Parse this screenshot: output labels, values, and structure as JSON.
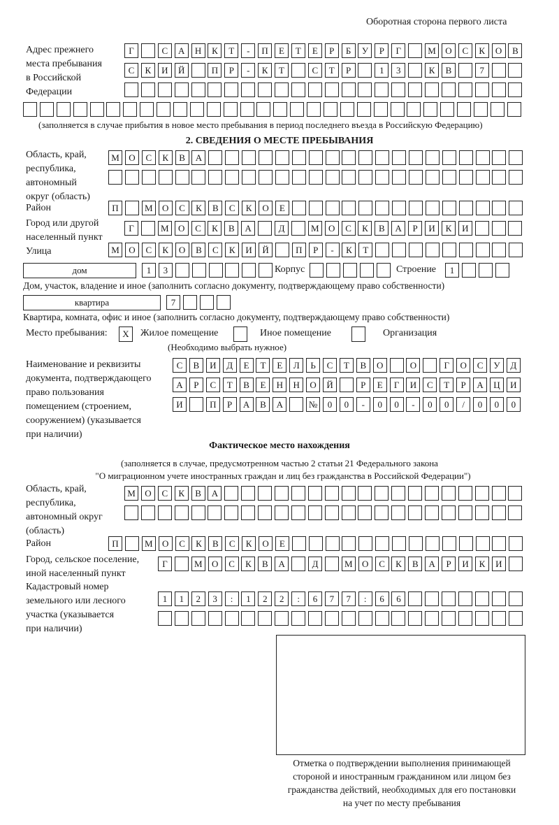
{
  "header": {
    "page_note": "Оборотная сторона первого листа"
  },
  "prev_address": {
    "label": [
      "Адрес прежнего",
      "места пребывания",
      "в Российской",
      "Федерации"
    ],
    "rows": [
      [
        "Г",
        "",
        "С",
        "А",
        "Н",
        "К",
        "Т",
        "-",
        "П",
        "Е",
        "Т",
        "Е",
        "Р",
        "Б",
        "У",
        "Р",
        "Г",
        "",
        "М",
        "О",
        "С",
        "К",
        "О",
        "В"
      ],
      [
        "С",
        "К",
        "И",
        "Й",
        "",
        "П",
        "Р",
        "-",
        "К",
        "Т",
        "",
        "С",
        "Т",
        "Р",
        "",
        "1",
        "3",
        "",
        "К",
        "В",
        "",
        "7",
        "",
        ""
      ],
      [
        "",
        "",
        "",
        "",
        "",
        "",
        "",
        "",
        "",
        "",
        "",
        "",
        "",
        "",
        "",
        "",
        "",
        "",
        "",
        "",
        "",
        "",
        "",
        ""
      ],
      [
        "",
        "",
        "",
        "",
        "",
        "",
        "",
        "",
        "",
        "",
        "",
        "",
        "",
        "",
        "",
        "",
        "",
        "",
        "",
        "",
        "",
        "",
        "",
        "",
        "",
        "",
        "",
        "",
        "",
        ""
      ]
    ],
    "caption": "(заполняется в случае прибытия в новое место пребывания в период последнего въезда в Российскую Федерацию)"
  },
  "section2": {
    "title": "2. СВЕДЕНИЯ О МЕСТЕ ПРЕБЫВАНИЯ",
    "region": {
      "label": [
        "Область, край,",
        "республика,",
        "автономный",
        "округ (область)"
      ],
      "rows": [
        [
          "М",
          "О",
          "С",
          "К",
          "В",
          "А",
          "",
          "",
          "",
          "",
          "",
          "",
          "",
          "",
          "",
          "",
          "",
          "",
          "",
          "",
          "",
          "",
          "",
          "",
          ""
        ],
        [
          "",
          "",
          "",
          "",
          "",
          "",
          "",
          "",
          "",
          "",
          "",
          "",
          "",
          "",
          "",
          "",
          "",
          "",
          "",
          "",
          "",
          "",
          "",
          "",
          ""
        ]
      ]
    },
    "district": {
      "label": "Район",
      "cells": [
        "П",
        "",
        "М",
        "О",
        "С",
        "К",
        "В",
        "С",
        "К",
        "О",
        "Е",
        "",
        "",
        "",
        "",
        "",
        "",
        "",
        "",
        "",
        "",
        "",
        "",
        "",
        ""
      ]
    },
    "city": {
      "label": [
        "Город или другой",
        "населенный пункт"
      ],
      "cells": [
        "Г",
        "",
        "М",
        "О",
        "С",
        "К",
        "В",
        "А",
        "",
        "Д",
        "",
        "М",
        "О",
        "С",
        "К",
        "В",
        "А",
        "Р",
        "И",
        "К",
        "И",
        "",
        "",
        ""
      ]
    },
    "street": {
      "label": "Улица",
      "cells": [
        "М",
        "О",
        "С",
        "К",
        "О",
        "В",
        "С",
        "К",
        "И",
        "Й",
        "",
        "П",
        "Р",
        "-",
        "К",
        "Т",
        "",
        "",
        "",
        "",
        "",
        "",
        "",
        "",
        ""
      ]
    },
    "house": {
      "type": "дом",
      "cells": [
        "1",
        "3",
        "",
        "",
        "",
        "",
        "",
        ""
      ],
      "korpus_label": "Корпус",
      "korpus_cells": [
        "",
        "",
        "",
        "",
        ""
      ],
      "building_label": "Строение",
      "building_cells": [
        "1",
        "",
        "",
        ""
      ],
      "caption": "Дом, участок, владение и иное (заполнить согласно документу, подтверждающему право собственности)"
    },
    "apartment": {
      "type": "квартира",
      "cells": [
        "7",
        "",
        "",
        ""
      ],
      "caption": "Квартира, комната, офис и иное (заполнить согласно документу, подтверждающему право собственности)"
    },
    "stay_place": {
      "label": "Место пребывания:",
      "options": [
        {
          "mark": "X",
          "label": "Жилое помещение"
        },
        {
          "mark": "",
          "label": "Иное помещение"
        },
        {
          "mark": "",
          "label": "Организация"
        }
      ],
      "hint": "(Необходимо выбрать нужное)"
    },
    "document": {
      "label": [
        "Наименование и реквизиты",
        "документа, подтверждающего",
        "право пользования",
        "помещением (строением,",
        "сооружением) (указывается",
        "при наличии)"
      ],
      "rows": [
        [
          "С",
          "В",
          "И",
          "Д",
          "Е",
          "Т",
          "Е",
          "Л",
          "Ь",
          "С",
          "Т",
          "В",
          "О",
          "",
          "О",
          "",
          "Г",
          "О",
          "С",
          "У",
          "Д"
        ],
        [
          "А",
          "Р",
          "С",
          "Т",
          "В",
          "Е",
          "Н",
          "Н",
          "О",
          "Й",
          "",
          "Р",
          "Е",
          "Г",
          "И",
          "С",
          "Т",
          "Р",
          "А",
          "Ц",
          "И"
        ],
        [
          "И",
          "",
          "П",
          "Р",
          "А",
          "В",
          "А",
          "",
          "№",
          "0",
          "0",
          "-",
          "0",
          "0",
          "-",
          "0",
          "0",
          "/",
          "0",
          "0",
          "0"
        ]
      ]
    }
  },
  "actual": {
    "title": "Фактическое место нахождения",
    "caption": [
      "(заполняется в случае, предусмотренном частью 2 статьи 21 Федерального закона",
      "\"О миграционном учете иностранных граждан и лиц без гражданства в Российской Федерации\")"
    ],
    "region": {
      "label": [
        "Область, край,",
        "республика,",
        "автономный округ",
        "(область)"
      ],
      "rows": [
        [
          "М",
          "О",
          "С",
          "К",
          "В",
          "А",
          "",
          "",
          "",
          "",
          "",
          "",
          "",
          "",
          "",
          "",
          "",
          "",
          "",
          "",
          "",
          "",
          "",
          ""
        ],
        [
          "",
          "",
          "",
          "",
          "",
          "",
          "",
          "",
          "",
          "",
          "",
          "",
          "",
          "",
          "",
          "",
          "",
          "",
          "",
          "",
          "",
          "",
          "",
          ""
        ]
      ]
    },
    "district": {
      "label": "Район",
      "cells": [
        "П",
        "",
        "М",
        "О",
        "С",
        "К",
        "В",
        "С",
        "К",
        "О",
        "Е",
        "",
        "",
        "",
        "",
        "",
        "",
        "",
        "",
        "",
        "",
        "",
        "",
        "",
        ""
      ]
    },
    "city": {
      "label": [
        "Город, сельское поселение,",
        "иной населенный пункт"
      ],
      "cells": [
        "Г",
        "",
        "М",
        "О",
        "С",
        "К",
        "В",
        "А",
        "",
        "Д",
        "",
        "М",
        "О",
        "С",
        "К",
        "В",
        "А",
        "Р",
        "И",
        "К",
        "И",
        ""
      ]
    },
    "cadastral": {
      "label": [
        "Кадастровый номер",
        "земельного или лесного",
        "участка (указывается",
        "при наличии)"
      ],
      "rows": [
        [
          "1",
          "1",
          "2",
          "3",
          ":",
          "1",
          "2",
          "2",
          ":",
          "6",
          "7",
          "7",
          ":",
          "6",
          "6",
          "",
          "",
          "",
          "",
          "",
          "",
          ""
        ],
        [
          "",
          "",
          "",
          "",
          "",
          "",
          "",
          "",
          "",
          "",
          "",
          "",
          "",
          "",
          "",
          "",
          "",
          "",
          "",
          "",
          "",
          ""
        ]
      ]
    },
    "stamp_caption": [
      "Отметка о подтверждении выполнения принимающей",
      "стороной и иностранным гражданином или лицом без",
      "гражданства действий, необходимых для его постановки",
      "на учет по месту пребывания"
    ]
  }
}
